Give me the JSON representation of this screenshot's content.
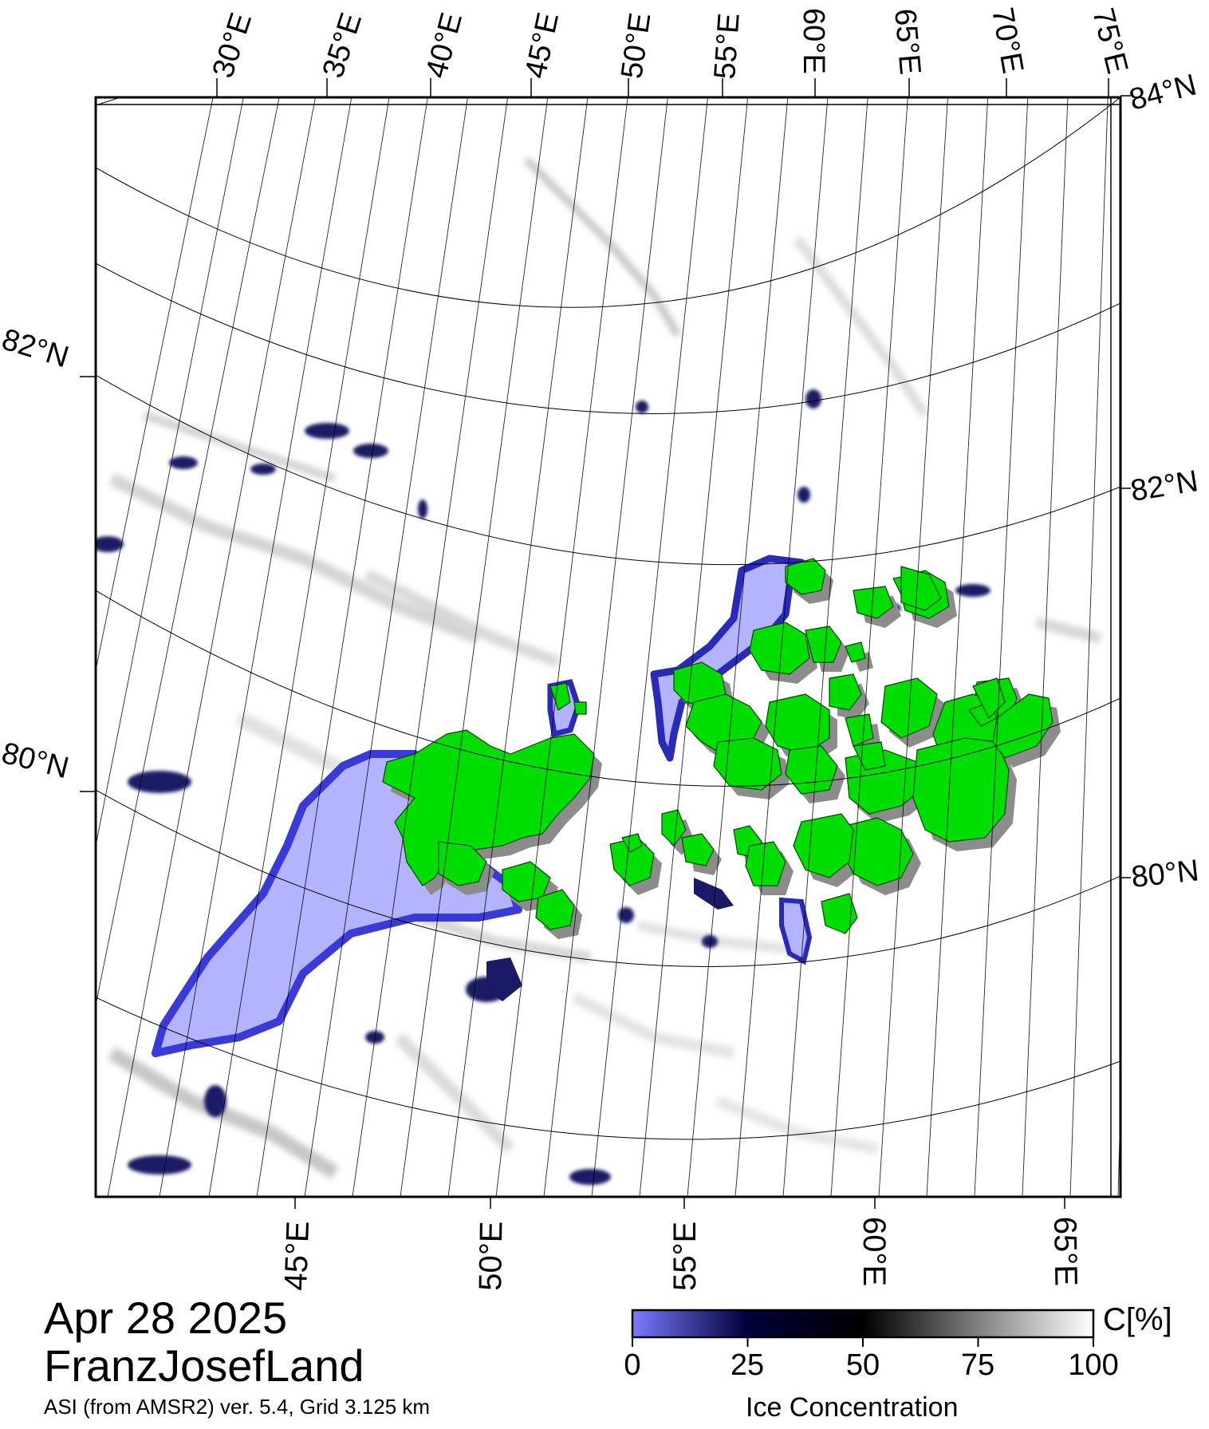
{
  "map": {
    "top_lon_labels": [
      "30°E",
      "35°E",
      "40°E",
      "45°E",
      "50°E",
      "55°E",
      "60°E",
      "65°E",
      "70°E",
      "75°E"
    ],
    "bottom_lon_labels": [
      "45°E",
      "50°E",
      "55°E",
      "60°E",
      "65°E"
    ],
    "left_lat_labels": [
      "82°N",
      "80°N"
    ],
    "right_lat_labels": [
      "84°N",
      "82°N",
      "80°N"
    ]
  },
  "legend": {
    "date": "Apr 28 2025",
    "region": "FranzJosefLand",
    "source": "ASI (from AMSR2) ver. 5.4,  Grid 3.125 km"
  },
  "colorbar": {
    "unit": "C[%]",
    "title": "Ice Concentration",
    "ticks": [
      "0",
      "25",
      "50",
      "75",
      "100"
    ],
    "colors": {
      "low": "#7b7bff",
      "mid": "#00003c",
      "dark": "#000000",
      "high": "#ffffff"
    }
  },
  "colors": {
    "land": "#00dd00",
    "open_water": "#b3b3ff",
    "shadow": "#8c8c8c",
    "ice_dark": "#1a1a66"
  }
}
